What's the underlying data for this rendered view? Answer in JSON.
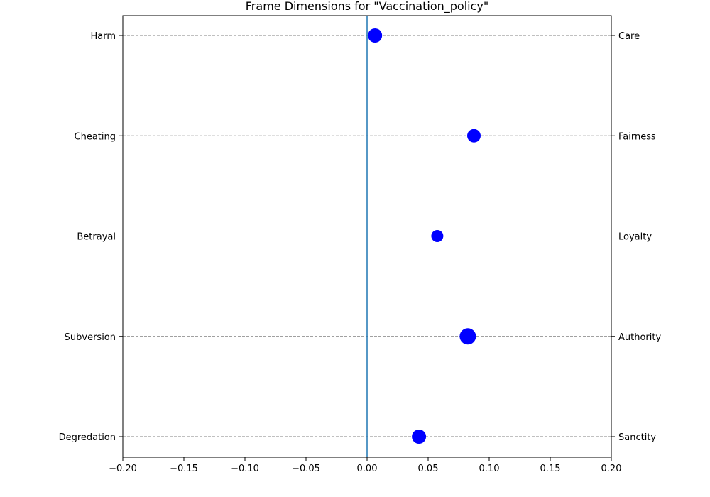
{
  "chart_data": {
    "type": "scatter",
    "title": "Frame Dimensions for \"Vaccination_policy\"",
    "xlim": [
      -0.2,
      0.2
    ],
    "xticks": [
      -0.2,
      -0.15,
      -0.1,
      -0.05,
      0.0,
      0.05,
      0.1,
      0.15,
      0.2
    ],
    "xtick_labels": [
      "−0.20",
      "−0.15",
      "−0.10",
      "−0.05",
      "0.00",
      "0.05",
      "0.10",
      "0.15",
      "0.20"
    ],
    "left_labels": [
      "Harm",
      "Cheating",
      "Betrayal",
      "Subversion",
      "Degredation"
    ],
    "right_labels": [
      "Care",
      "Fairness",
      "Loyalty",
      "Authority",
      "Sanctity"
    ],
    "points": [
      {
        "x": 0.0065,
        "relative_size": 1.0
      },
      {
        "x": 0.0875,
        "relative_size": 0.95
      },
      {
        "x": 0.0575,
        "relative_size": 0.85
      },
      {
        "x": 0.0825,
        "relative_size": 1.15
      },
      {
        "x": 0.0425,
        "relative_size": 1.0
      }
    ],
    "vertical_line_x": 0.0,
    "grid": "horizontal dashed",
    "colors": {
      "points": "#0000ff",
      "zero_line": "#1f77b4",
      "grid": "#808080",
      "axes": "#000000"
    }
  }
}
